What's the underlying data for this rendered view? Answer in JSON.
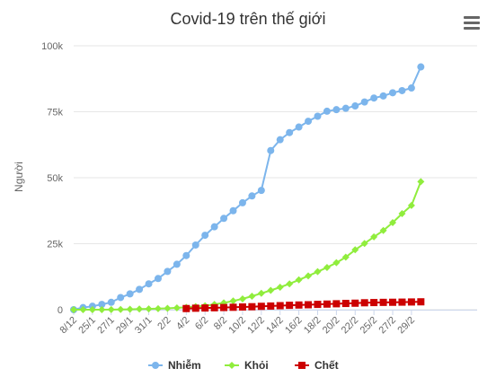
{
  "chart_data": {
    "type": "line",
    "title": "Covid-19 trên thế giới",
    "xlabel": "",
    "ylabel": "Người",
    "ylim": [
      0,
      100000
    ],
    "yticks": [
      0,
      25000,
      50000,
      75000,
      100000
    ],
    "ytick_labels": [
      "0",
      "25k",
      "50k",
      "75k",
      "100k"
    ],
    "grid": true,
    "legend_position": "bottom",
    "x_count": 44,
    "xtick_labels": [
      {
        "index": 0,
        "label": "8/12"
      },
      {
        "index": 2,
        "label": "25/1"
      },
      {
        "index": 4,
        "label": "27/1"
      },
      {
        "index": 6,
        "label": "29/1"
      },
      {
        "index": 8,
        "label": "31/1"
      },
      {
        "index": 10,
        "label": "2/2"
      },
      {
        "index": 12,
        "label": "4/2"
      },
      {
        "index": 14,
        "label": "6/2"
      },
      {
        "index": 16,
        "label": "8/2"
      },
      {
        "index": 18,
        "label": "10/2"
      },
      {
        "index": 20,
        "label": "12/2"
      },
      {
        "index": 22,
        "label": "14/2"
      },
      {
        "index": 24,
        "label": "16/2"
      },
      {
        "index": 26,
        "label": "18/2"
      },
      {
        "index": 28,
        "label": "20/2"
      },
      {
        "index": 30,
        "label": "22/2"
      },
      {
        "index": 32,
        "label": "25/2"
      },
      {
        "index": 34,
        "label": "27/2"
      },
      {
        "index": 36,
        "label": "29/2"
      }
    ],
    "series": [
      {
        "name": "Nhiễm",
        "color": "#7cb5ec",
        "marker": "circle",
        "start_index": 0,
        "values": [
          0,
          800,
          1300,
          2000,
          2800,
          4600,
          6000,
          7700,
          9800,
          11800,
          14500,
          17200,
          20500,
          24500,
          28200,
          31400,
          34600,
          37500,
          40500,
          43100,
          45200,
          60300,
          64400,
          67100,
          69200,
          71400,
          73300,
          75200,
          75800,
          76300,
          77200,
          78700,
          80200,
          81000,
          82200,
          83000,
          84000,
          92000
        ]
      },
      {
        "name": "Khỏi",
        "color": "#90ed3d",
        "marker": "diamond",
        "start_index": 0,
        "values": [
          0,
          0,
          0,
          0,
          50,
          100,
          150,
          250,
          300,
          400,
          500,
          700,
          900,
          1200,
          1500,
          2000,
          2600,
          3300,
          4100,
          5100,
          6200,
          7300,
          8500,
          9800,
          11300,
          12800,
          14400,
          16000,
          17800,
          19900,
          22700,
          25100,
          27600,
          30000,
          33000,
          36400,
          39500,
          48500
        ]
      },
      {
        "name": "Chết",
        "color": "#cc0000",
        "marker": "square",
        "start_index": 12,
        "values": [
          430,
          560,
          640,
          730,
          810,
          910,
          1020,
          1120,
          1270,
          1380,
          1520,
          1660,
          1770,
          1870,
          2010,
          2120,
          2240,
          2360,
          2460,
          2620,
          2700,
          2770,
          2810,
          2860,
          2920,
          2980
        ]
      }
    ]
  }
}
